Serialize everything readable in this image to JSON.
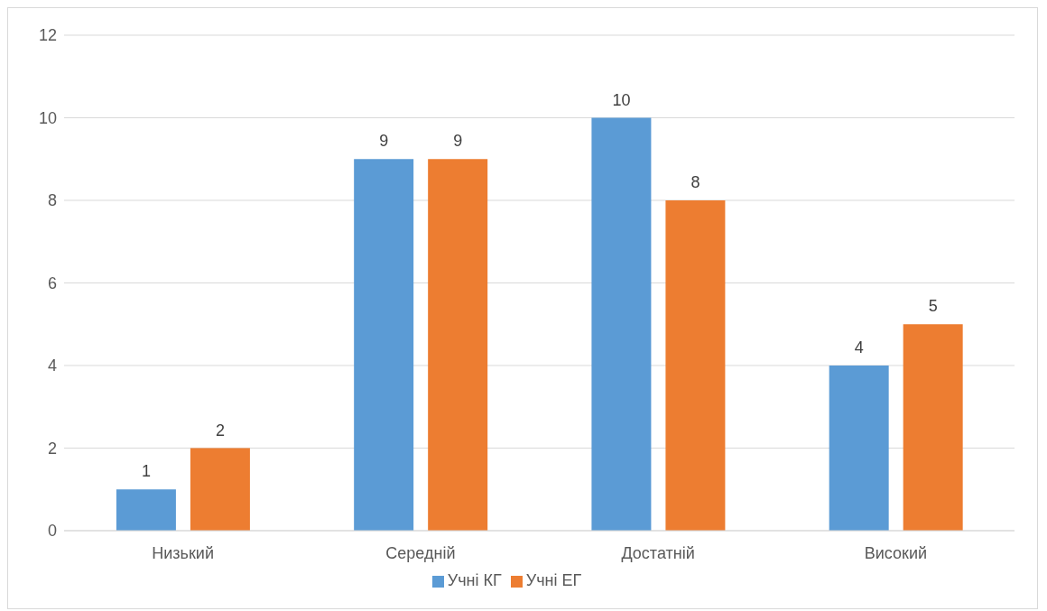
{
  "chart_data": {
    "type": "bar",
    "categories": [
      "Низький",
      "Середній",
      "Достатній",
      "Високий"
    ],
    "series": [
      {
        "name": "Учні КГ",
        "color": "#5b9bd5",
        "values": [
          1,
          9,
          10,
          4
        ]
      },
      {
        "name": "Учні ЕГ",
        "color": "#ed7d31",
        "values": [
          2,
          9,
          8,
          5
        ]
      }
    ],
    "ylim": [
      0,
      12
    ],
    "yticks": [
      0,
      2,
      4,
      6,
      8,
      10,
      12
    ],
    "grid": "y",
    "legend": "bottom",
    "data_labels": true
  }
}
